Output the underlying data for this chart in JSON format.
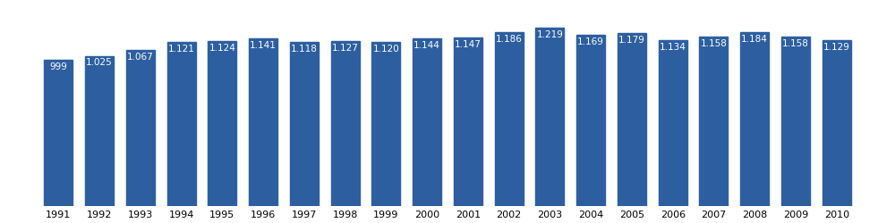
{
  "years": [
    1991,
    1992,
    1993,
    1994,
    1995,
    1996,
    1997,
    1998,
    1999,
    2000,
    2001,
    2002,
    2003,
    2004,
    2005,
    2006,
    2007,
    2008,
    2009,
    2010
  ],
  "values_plot": [
    999,
    1025,
    1067,
    1121,
    1124,
    1141,
    1118,
    1127,
    1120,
    1144,
    1147,
    1186,
    1219,
    1169,
    1179,
    1134,
    1158,
    1184,
    1158,
    1129
  ],
  "raw_labels": [
    "999",
    "1.025",
    "1.067",
    "1.121",
    "1.124",
    "1.141",
    "1.118",
    "1.127",
    "1.120",
    "1.144",
    "1.147",
    "1.186",
    "1.219",
    "1.169",
    "1.179",
    "1.134",
    "1.158",
    "1.184",
    "1.158",
    "1.129"
  ],
  "bar_color": "#2d5fa0",
  "background_color": "#ffffff",
  "label_color": "#ffffff",
  "label_fontsize": 7.5,
  "tick_fontsize": 8,
  "ylim_min": 0,
  "ylim_max": 1380,
  "bar_width": 0.7
}
